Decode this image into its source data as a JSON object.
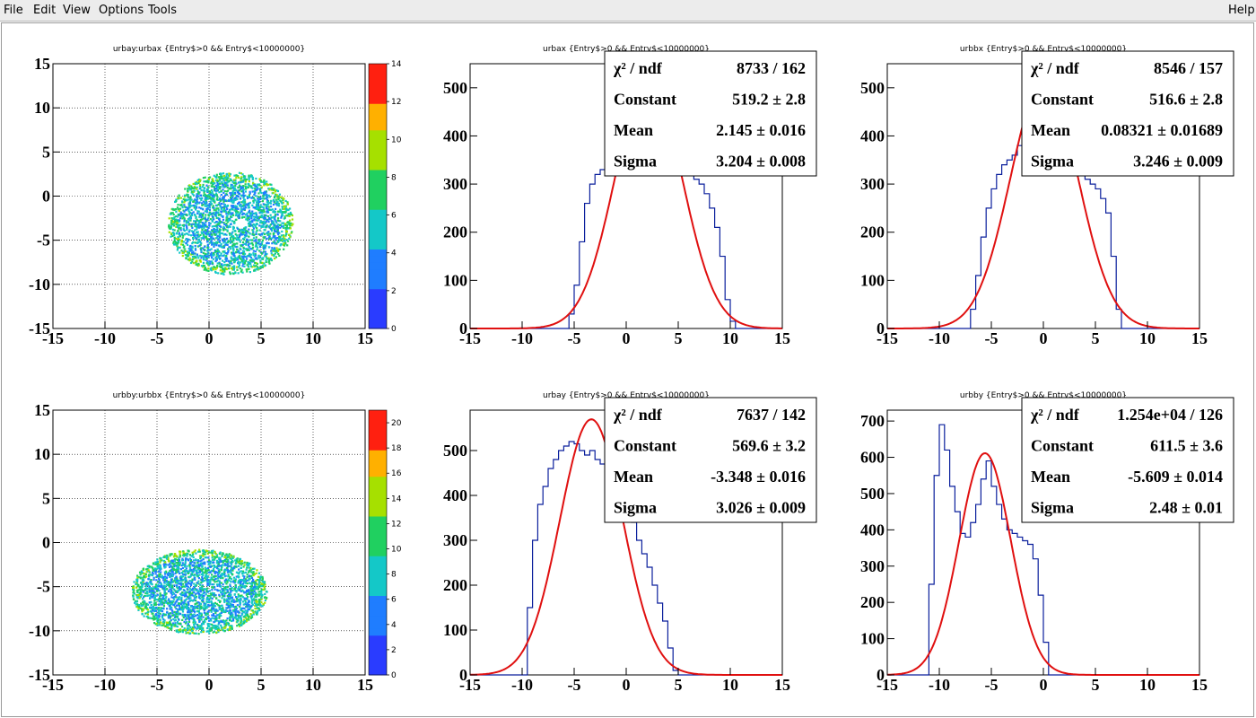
{
  "menu": {
    "items": [
      "File",
      "Edit",
      "View",
      "Options",
      "Tools"
    ],
    "help": "Help"
  },
  "chart_data": [
    {
      "type": "heatmap",
      "title": "urbay:urbax {Entry$>0 && Entry$<10000000}",
      "xlim": [
        -15,
        15
      ],
      "ylim": [
        -15,
        15
      ],
      "xticks": [
        "-15",
        "-10",
        "-5",
        "0",
        "5",
        "10",
        "15"
      ],
      "yticks": [
        "-15",
        "-10",
        "-5",
        "0",
        "5",
        "10",
        "15"
      ],
      "zlim": [
        0,
        14
      ],
      "zticks": [
        "0",
        "2",
        "4",
        "6",
        "8",
        "10",
        "12",
        "14"
      ],
      "grid": true,
      "blob": {
        "center": [
          2.0,
          -3.0
        ],
        "radius_x": 6.0,
        "radius_y": 5.8,
        "hole": [
          3.0,
          -3.0
        ]
      }
    },
    {
      "type": "area",
      "title": "urbax {Entry$>0 && Entry$<10000000}",
      "xlim": [
        -15,
        15
      ],
      "ylim": [
        0,
        550
      ],
      "xticks": [
        "-15",
        "-10",
        "-5",
        "0",
        "5",
        "10",
        "15"
      ],
      "yticks": [
        "0",
        "100",
        "200",
        "300",
        "400",
        "500"
      ],
      "histogram": {
        "x": [
          -6,
          -5.5,
          -5,
          -4.5,
          -4,
          -3.5,
          -3,
          -2.5,
          -2,
          6,
          6.5,
          7,
          7.5,
          8,
          8.5,
          9,
          9.5,
          10,
          10.5
        ],
        "y": [
          0,
          30,
          90,
          180,
          260,
          300,
          320,
          330,
          340,
          330,
          310,
          300,
          280,
          250,
          210,
          150,
          60,
          15,
          0
        ]
      },
      "fit": {
        "constant": 519.2,
        "mean": 2.145,
        "sigma": 3.204
      },
      "stats": [
        {
          "label": "χ² / ndf",
          "value": "8733 / 162"
        },
        {
          "label": "Constant",
          "value": "519.2 ± 2.8"
        },
        {
          "label": "Mean",
          "value": "2.145 ± 0.016"
        },
        {
          "label": "Sigma",
          "value": "3.204 ± 0.008"
        }
      ]
    },
    {
      "type": "area",
      "title": "urbbx {Entry$>0 && Entry$<10000000}",
      "xlim": [
        -15,
        15
      ],
      "ylim": [
        0,
        550
      ],
      "xticks": [
        "-15",
        "-10",
        "-5",
        "0",
        "5",
        "10",
        "15"
      ],
      "yticks": [
        "0",
        "100",
        "200",
        "300",
        "400",
        "500"
      ],
      "histogram": {
        "x": [
          -7.5,
          -7,
          -6.5,
          -6,
          -5.5,
          -5,
          -4.5,
          -4,
          -3.5,
          -3,
          -2.5,
          -2,
          3,
          3.5,
          4,
          4.5,
          5,
          5.5,
          6,
          6.5,
          7,
          7.5
        ],
        "y": [
          0,
          40,
          110,
          190,
          250,
          290,
          320,
          340,
          350,
          360,
          380,
          400,
          400,
          340,
          310,
          300,
          290,
          270,
          240,
          150,
          40,
          0
        ]
      },
      "fit": {
        "constant": 516.6,
        "mean": 0.08321,
        "sigma": 3.246
      },
      "stats": [
        {
          "label": "χ² / ndf",
          "value": "8546 / 157"
        },
        {
          "label": "Constant",
          "value": "516.6 ± 2.8"
        },
        {
          "label": "Mean",
          "value": "0.08321 ± 0.01689"
        },
        {
          "label": "Sigma",
          "value": "3.246 ± 0.009"
        }
      ]
    },
    {
      "type": "heatmap",
      "title": "urbby:urbbx {Entry$>0 && Entry$<10000000}",
      "xlim": [
        -15,
        15
      ],
      "ylim": [
        -15,
        15
      ],
      "xticks": [
        "-15",
        "-10",
        "-5",
        "0",
        "5",
        "10",
        "15"
      ],
      "yticks": [
        "-15",
        "-10",
        "-5",
        "0",
        "5",
        "10",
        "15"
      ],
      "zlim": [
        0,
        21
      ],
      "zticks": [
        "0",
        "2",
        "4",
        "6",
        "8",
        "10",
        "12",
        "14",
        "16",
        "18",
        "20"
      ],
      "grid": true,
      "blob": {
        "center": [
          -1.0,
          -5.5
        ],
        "radius_x": 6.5,
        "radius_y": 4.8,
        "hole": null
      }
    },
    {
      "type": "area",
      "title": "urbay {Entry$>0 && Entry$<10000000}",
      "xlim": [
        -15,
        15
      ],
      "ylim": [
        0,
        590
      ],
      "xticks": [
        "-15",
        "-10",
        "-5",
        "0",
        "5",
        "10",
        "15"
      ],
      "yticks": [
        "0",
        "100",
        "200",
        "300",
        "400",
        "500"
      ],
      "histogram": {
        "x": [
          -10,
          -9.5,
          -9,
          -8.5,
          -8,
          -7.5,
          -7,
          -6.5,
          -6,
          -5.5,
          -5,
          -4.5,
          -4,
          -3.5,
          -3,
          -2.5,
          -2,
          -1.5,
          -1,
          -0.5,
          0,
          0.5,
          1,
          1.5,
          2,
          2.5,
          3,
          3.5,
          4,
          4.5,
          5
        ],
        "y": [
          0,
          150,
          300,
          380,
          420,
          460,
          480,
          500,
          510,
          520,
          515,
          500,
          490,
          500,
          480,
          470,
          460,
          440,
          420,
          400,
          380,
          340,
          300,
          270,
          240,
          200,
          160,
          120,
          60,
          10,
          0
        ]
      },
      "fit": {
        "constant": 569.6,
        "mean": -3.348,
        "sigma": 3.026
      },
      "stats": [
        {
          "label": "χ² / ndf",
          "value": "7637 / 142"
        },
        {
          "label": "Constant",
          "value": "569.6 ± 3.2"
        },
        {
          "label": "Mean",
          "value": "-3.348 ± 0.016"
        },
        {
          "label": "Sigma",
          "value": "3.026 ± 0.009"
        }
      ]
    },
    {
      "type": "area",
      "title": "urbby {Entry$>0 && Entry$<10000000}",
      "xlim": [
        -15,
        15
      ],
      "ylim": [
        0,
        730
      ],
      "xticks": [
        "-15",
        "-10",
        "-5",
        "0",
        "5",
        "10",
        "15"
      ],
      "yticks": [
        "0",
        "100",
        "200",
        "300",
        "400",
        "500",
        "600",
        "700"
      ],
      "histogram": {
        "x": [
          -11.5,
          -11,
          -10.5,
          -10,
          -9.5,
          -9,
          -8.5,
          -8,
          -7.5,
          -7,
          -6.5,
          -6,
          -5.5,
          -5,
          -4.5,
          -4,
          -3.5,
          -3,
          -2.5,
          -2,
          -1.5,
          -1,
          -0.5,
          0,
          0.5
        ],
        "y": [
          0,
          250,
          550,
          690,
          620,
          520,
          450,
          390,
          380,
          420,
          470,
          540,
          590,
          520,
          470,
          430,
          400,
          390,
          380,
          370,
          360,
          320,
          220,
          90,
          0
        ]
      },
      "fit": {
        "constant": 611.5,
        "mean": -5.609,
        "sigma": 2.48
      },
      "stats": [
        {
          "label": "χ² / ndf",
          "value": "1.254e+04 / 126"
        },
        {
          "label": "Constant",
          "value": "611.5 ± 3.6"
        },
        {
          "label": "Mean",
          "value": "-5.609 ± 0.014"
        },
        {
          "label": "Sigma",
          "value": "2.48 ± 0.01"
        }
      ]
    }
  ]
}
